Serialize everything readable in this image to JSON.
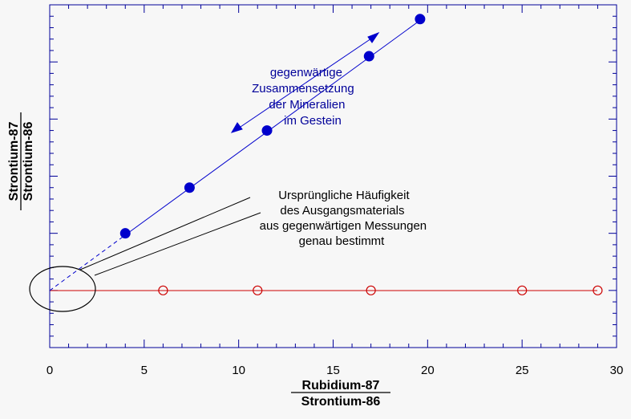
{
  "chart_data": {
    "type": "scatter",
    "title": "",
    "xlim": [
      0,
      30
    ],
    "ylim": [
      -1,
      5
    ],
    "x_ticks": [
      "0",
      "5",
      "10",
      "15",
      "20",
      "25",
      "30"
    ],
    "xlabel": {
      "numerator": "Rubidium-87",
      "denominator": "Strontium-86"
    },
    "ylabel": {
      "numerator": "Strontium-87",
      "denominator": "Strontium-86"
    },
    "grid": false,
    "series": [
      {
        "marker": "filled-circle",
        "color": "#0000cc",
        "x": [
          4,
          7.4,
          11.5,
          16.9,
          19.6
        ],
        "y": [
          1,
          1.8,
          2.8,
          4.1,
          4.75
        ]
      },
      {
        "marker": "open-circle",
        "color": "#cc0000",
        "x": [
          6,
          11,
          17,
          25,
          29
        ],
        "y": [
          0,
          0,
          0,
          0,
          0
        ]
      }
    ],
    "annotations": [
      {
        "id": "present",
        "color": "#000099",
        "lines": [
          "gegenwärtige",
          "Zusammensetzung",
          "der Mineralien",
          "im Gestein"
        ]
      },
      {
        "id": "original",
        "color": "#000000",
        "lines": [
          "Ursprüngliche Häufigkeit",
          "des Ausgangsmaterials",
          "aus gegenwärtigen Messungen",
          "genau bestimmt"
        ]
      }
    ]
  }
}
